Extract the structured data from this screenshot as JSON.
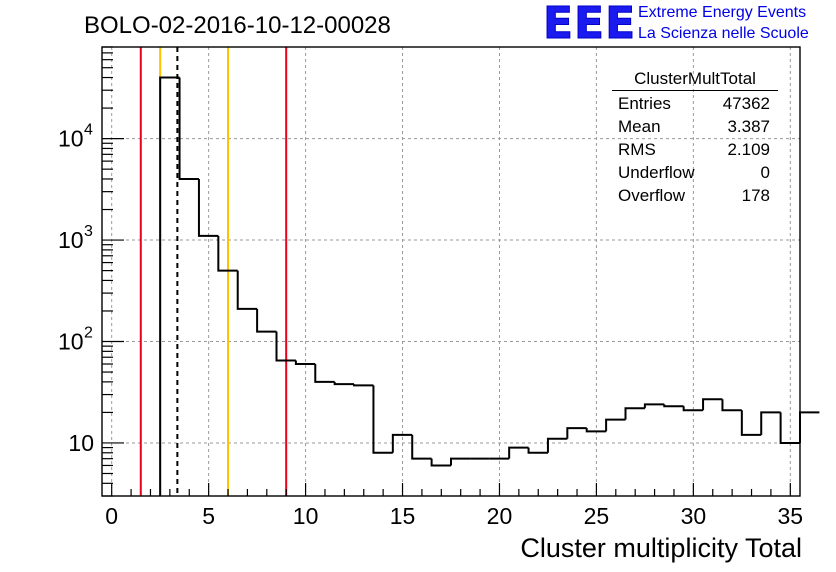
{
  "header": {
    "title": "BOLO-02-2016-10-12-00028",
    "logo_text": "EEE",
    "brand_line1": "Extreme Energy Events",
    "brand_line2": "La Scienza nelle Scuole"
  },
  "stats_box": {
    "title": "ClusterMultTotal",
    "rows": [
      {
        "label": "Entries",
        "value": "47362"
      },
      {
        "label": "Mean",
        "value": "3.387"
      },
      {
        "label": "RMS",
        "value": "2.109"
      },
      {
        "label": "Underflow",
        "value": "0"
      },
      {
        "label": "Overflow",
        "value": "178"
      }
    ]
  },
  "colors": {
    "histogram": "#000000",
    "red_lines": "#e8001c",
    "yellow_lines": "#ffc000",
    "mean_line": "#000000",
    "grid": "#9a9a9a",
    "brand": "#0000e6"
  },
  "chart_data": {
    "type": "histogram",
    "title": "",
    "xlabel": "Cluster multiplicity Total",
    "ylabel": "",
    "xlim": [
      -0.5,
      35.5
    ],
    "ylim": [
      3,
      80000
    ],
    "yscale": "log",
    "grid": true,
    "xticks": [
      0,
      5,
      10,
      15,
      20,
      25,
      30,
      35
    ],
    "ytick_labels": [
      {
        "value": 10,
        "label": "10"
      },
      {
        "value": 100,
        "label": "10",
        "exp": "2"
      },
      {
        "value": 1000,
        "label": "10",
        "exp": "3"
      },
      {
        "value": 10000,
        "label": "10",
        "exp": "4"
      }
    ],
    "bin_width": 1,
    "bin_edges_start": 2.5,
    "counts": [
      40000,
      4000,
      1100,
      500,
      210,
      125,
      65,
      60,
      40,
      38,
      37,
      8,
      12,
      7,
      6,
      7,
      7,
      7,
      9,
      8,
      11,
      14,
      13,
      17,
      22,
      24,
      23,
      21,
      27,
      21,
      12,
      20,
      10,
      20
    ],
    "vertical_lines": [
      {
        "x": 1.5,
        "color": "red",
        "style": "solid"
      },
      {
        "x": 2.5,
        "color": "yellow",
        "style": "solid"
      },
      {
        "x": 3.387,
        "color": "black",
        "style": "dashed"
      },
      {
        "x": 6.0,
        "color": "yellow",
        "style": "solid"
      },
      {
        "x": 9.0,
        "color": "red",
        "style": "solid"
      }
    ]
  }
}
